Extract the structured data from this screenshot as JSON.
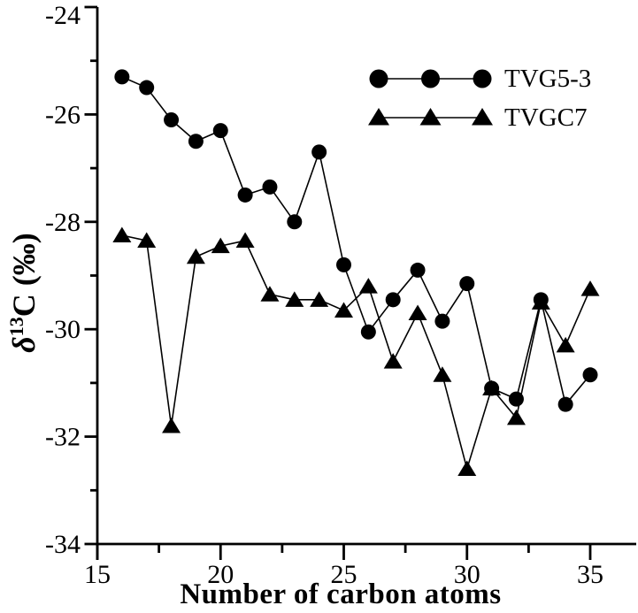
{
  "figure": {
    "background": "#ffffff",
    "ink": "#000000"
  },
  "chart_data": {
    "type": "line",
    "title": "",
    "xlabel": "Number of carbon atoms",
    "ylabel": "δ13C (‰)",
    "ylabel_parts": {
      "prefix": "δ",
      "sup": "13",
      "suffix": "C (‰)"
    },
    "xlim": [
      15,
      36.9
    ],
    "ylim": [
      -34,
      -24
    ],
    "x_major_ticks": [
      15,
      20,
      25,
      30,
      35
    ],
    "x_minor_ticks": [
      17.5,
      22.5,
      27.5,
      32.5
    ],
    "y_major_ticks": [
      -24,
      -26,
      -28,
      -30,
      -32,
      -34
    ],
    "y_minor_ticks": [
      -25,
      -27,
      -29,
      -31,
      -33
    ],
    "grid": false,
    "legend_position": "top-right",
    "x": [
      16,
      17,
      18,
      19,
      20,
      21,
      22,
      23,
      24,
      25,
      26,
      27,
      28,
      29,
      30,
      31,
      32,
      33,
      34,
      35
    ],
    "series": [
      {
        "name": "TVG5-3",
        "marker": "circle",
        "values": [
          -25.3,
          -25.5,
          -26.1,
          -26.5,
          -26.3,
          -27.5,
          -27.35,
          -28.0,
          -26.7,
          -28.8,
          -30.05,
          -29.45,
          -28.9,
          -29.85,
          -29.15,
          -31.1,
          -31.3,
          -29.45,
          -31.4,
          -30.85
        ]
      },
      {
        "name": "TVGC7",
        "marker": "triangle",
        "values": [
          -28.25,
          -28.35,
          -31.8,
          -28.65,
          -28.45,
          -28.35,
          -29.35,
          -29.45,
          -29.45,
          -29.65,
          -29.2,
          -30.6,
          -29.7,
          -30.85,
          -32.6,
          -31.1,
          -31.65,
          -29.5,
          -30.3,
          -29.25
        ]
      }
    ]
  }
}
